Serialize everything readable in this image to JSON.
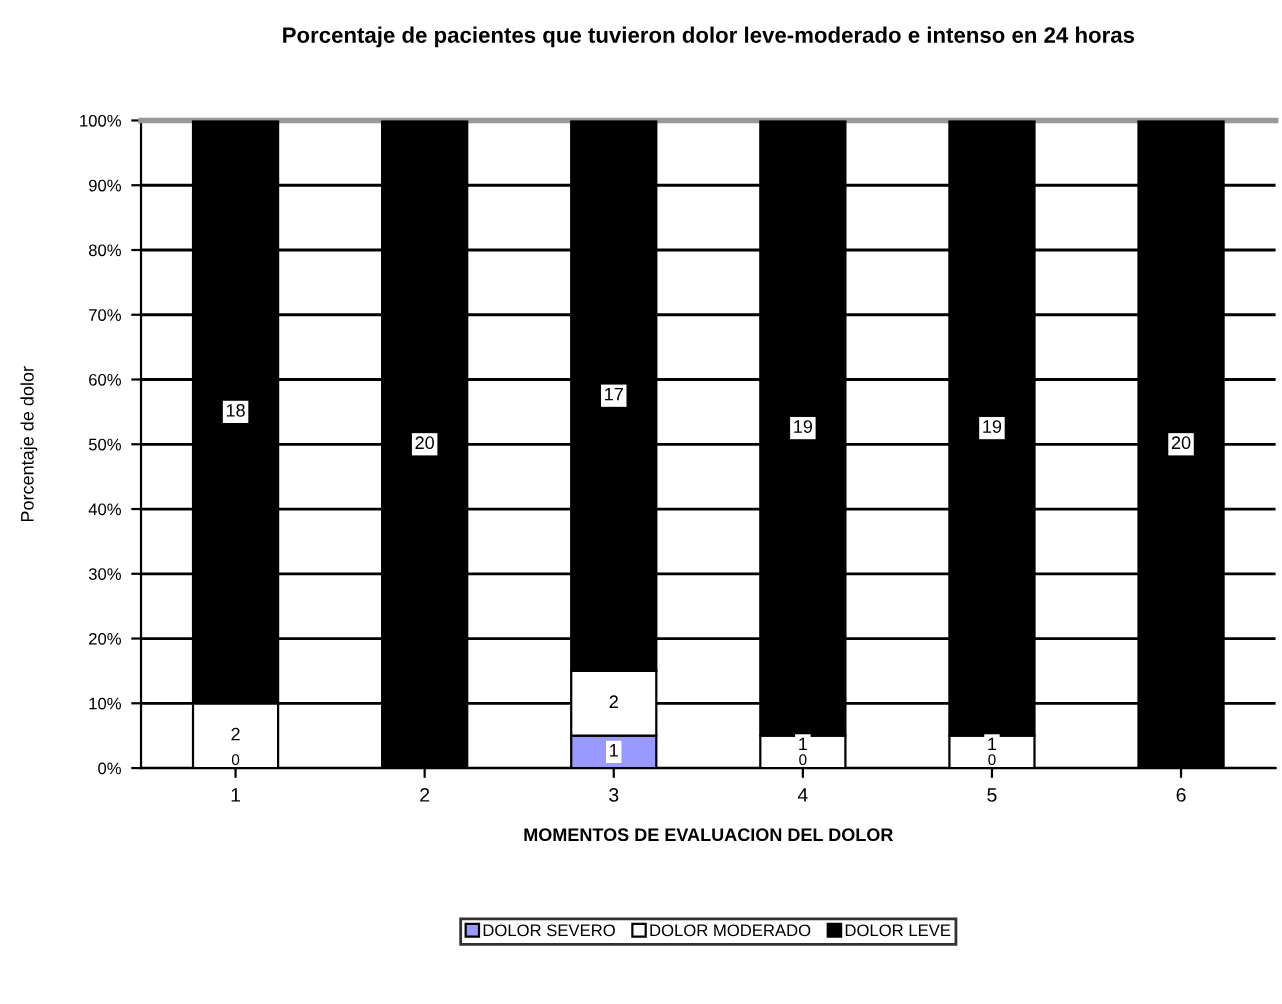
{
  "chart_data": {
    "type": "bar",
    "title": "Porcentaje de pacientes que tuvieron dolor leve-moderado e intenso en 24 horas",
    "xlabel": "MOMENTOS DE EVALUACION DEL DOLOR",
    "ylabel": "Porcentaje de dolor",
    "categories": [
      "1",
      "2",
      "3",
      "4",
      "5",
      "6"
    ],
    "stacked": true,
    "series": [
      {
        "name": "DOLOR SEVERO",
        "color": "#9999ff",
        "values": [
          0,
          0,
          5,
          0,
          0,
          0
        ]
      },
      {
        "name": "DOLOR MODERADO",
        "color": "#ffffff",
        "values": [
          10,
          0,
          10,
          5,
          5,
          0
        ]
      },
      {
        "name": "DOLOR LEVE",
        "color": "#000000",
        "values": [
          90,
          100,
          85,
          95,
          95,
          100
        ]
      }
    ],
    "annotations": [
      {
        "text": "0",
        "x": "1",
        "y": 0
      },
      {
        "text": "2",
        "x": "1",
        "y": 5
      },
      {
        "text": "18",
        "x": "1",
        "y": 55
      },
      {
        "text": "20",
        "x": "2",
        "y": 50
      },
      {
        "text": "1",
        "x": "3",
        "y": 2.5
      },
      {
        "text": "2",
        "x": "3",
        "y": 10
      },
      {
        "text": "17",
        "x": "3",
        "y": 57.5
      },
      {
        "text": "0",
        "x": "4",
        "y": 0
      },
      {
        "text": "1",
        "x": "4",
        "y": 3.5
      },
      {
        "text": "19",
        "x": "4",
        "y": 52.5
      },
      {
        "text": "0",
        "x": "5",
        "y": 0
      },
      {
        "text": "1",
        "x": "5",
        "y": 3.5
      },
      {
        "text": "19",
        "x": "5",
        "y": 52.5
      },
      {
        "text": "20",
        "x": "6",
        "y": 50
      }
    ],
    "ylim": [
      0,
      100
    ],
    "yticks": [
      {
        "value": 0,
        "label": "0%"
      },
      {
        "value": 10,
        "label": "10%"
      },
      {
        "value": 20,
        "label": "20%"
      },
      {
        "value": 30,
        "label": "30%"
      },
      {
        "value": 40,
        "label": "40%"
      },
      {
        "value": 50,
        "label": "50%"
      },
      {
        "value": 60,
        "label": "60%"
      },
      {
        "value": 70,
        "label": "70%"
      },
      {
        "value": 80,
        "label": "80%"
      },
      {
        "value": 90,
        "label": "90%"
      },
      {
        "value": 100,
        "label": "100%"
      }
    ],
    "grid": "y",
    "legend": "bottom"
  }
}
